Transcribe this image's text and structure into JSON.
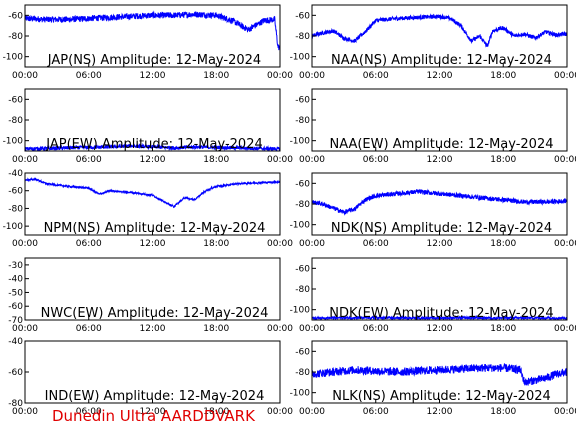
{
  "footer": "Dunedin Ultra AARDDVARK",
  "colors": {
    "trace": "#0000ff",
    "axis": "#000000",
    "footer": "#e00000"
  },
  "chart_data": [
    {
      "type": "line",
      "title": "JAP(NS) Amplitude: 12-May-2024",
      "xticks": [
        "00:00",
        "06:00",
        "12:00",
        "18:00",
        "00:00"
      ],
      "xlim": [
        0,
        24
      ],
      "yticks": [
        -60,
        -80,
        -100
      ],
      "ylim": [
        -110,
        -50
      ],
      "noise": 3,
      "series": [
        {
          "x": [
            0,
            2,
            4,
            6,
            8,
            10,
            12,
            14,
            16,
            18,
            19.5,
            21,
            22.5,
            23.5,
            23.8,
            24
          ],
          "y": [
            -63,
            -64,
            -64,
            -63,
            -62,
            -61,
            -60,
            -60,
            -59,
            -60,
            -65,
            -74,
            -65,
            -64,
            -90,
            -92
          ]
        }
      ]
    },
    {
      "type": "line",
      "title": "NAA(NS) Amplitude: 12-May-2024",
      "xticks": [
        "00:00",
        "06:00",
        "12:00",
        "18:00",
        "00:00"
      ],
      "xlim": [
        0,
        24
      ],
      "yticks": [
        -60,
        -80,
        -100
      ],
      "ylim": [
        -110,
        -50
      ],
      "noise": 2,
      "series": [
        {
          "x": [
            0,
            1,
            2,
            3,
            4,
            5,
            6,
            8,
            10,
            12,
            13,
            14,
            15,
            15.8,
            16.5,
            17,
            18,
            19,
            20,
            21,
            22,
            23,
            24
          ],
          "y": [
            -80,
            -77,
            -75,
            -82,
            -85,
            -76,
            -65,
            -63,
            -62,
            -61,
            -63,
            -70,
            -85,
            -80,
            -90,
            -75,
            -72,
            -80,
            -78,
            -82,
            -76,
            -79,
            -78
          ]
        }
      ]
    },
    {
      "type": "line",
      "title": "JAP(EW) Amplitude: 12-May-2024",
      "xticks": [
        "00:00",
        "06:00",
        "12:00",
        "18:00",
        "00:00"
      ],
      "xlim": [
        0,
        24
      ],
      "yticks": [
        -60,
        -80,
        -100
      ],
      "ylim": [
        -110,
        -50
      ],
      "noise": 1.8,
      "series": [
        {
          "x": [
            0,
            4,
            8,
            10,
            12,
            14,
            16,
            20,
            24
          ],
          "y": [
            -108,
            -107,
            -106,
            -105,
            -106,
            -107,
            -106,
            -107,
            -108
          ]
        }
      ]
    },
    {
      "type": "line",
      "title": "NAA(EW) Amplitude: 12-May-2024",
      "xticks": [
        "00:00",
        "06:00",
        "12:00",
        "18:00",
        "00:00"
      ],
      "xlim": [
        0,
        24
      ],
      "yticks": [
        -60,
        -80,
        -100
      ],
      "ylim": [
        -110,
        -50
      ],
      "noise": 0,
      "series": [
        {
          "x": [],
          "y": []
        }
      ]
    },
    {
      "type": "line",
      "title": "NPM(NS) Amplitude: 12-May-2024",
      "xticks": [
        "00:00",
        "06:00",
        "12:00",
        "18:00",
        "00:00"
      ],
      "xlim": [
        0,
        24
      ],
      "yticks": [
        -40,
        -60,
        -80,
        -100
      ],
      "ylim": [
        -110,
        -40
      ],
      "noise": 1,
      "series": [
        {
          "x": [
            0,
            1,
            2,
            4,
            6,
            7,
            8,
            10,
            12,
            13,
            14,
            15,
            16,
            17,
            18,
            19,
            20,
            22,
            24
          ],
          "y": [
            -48,
            -47,
            -52,
            -55,
            -57,
            -64,
            -60,
            -62,
            -65,
            -72,
            -78,
            -68,
            -70,
            -60,
            -55,
            -54,
            -52,
            -51,
            -50
          ]
        }
      ]
    },
    {
      "type": "line",
      "title": "NDK(NS) Amplitude: 12-May-2024",
      "xticks": [
        "00:00",
        "06:00",
        "12:00",
        "18:00",
        "00:00"
      ],
      "xlim": [
        0,
        24
      ],
      "yticks": [
        -60,
        -80,
        -100
      ],
      "ylim": [
        -110,
        -50
      ],
      "noise": 2.2,
      "series": [
        {
          "x": [
            0,
            1,
            2,
            3,
            4,
            5,
            6,
            8,
            10,
            12,
            14,
            16,
            18,
            20,
            22,
            24
          ],
          "y": [
            -78,
            -80,
            -84,
            -88,
            -85,
            -76,
            -72,
            -70,
            -68,
            -70,
            -72,
            -74,
            -76,
            -78,
            -78,
            -77
          ]
        }
      ]
    },
    {
      "type": "line",
      "title": "NWC(EW) Amplitude: 12-May-2024",
      "xticks": [
        "00:00",
        "06:00",
        "12:00",
        "18:00",
        "00:00"
      ],
      "xlim": [
        0,
        24
      ],
      "yticks": [
        -30,
        -40,
        -50,
        -60,
        -70
      ],
      "ylim": [
        -70,
        -25
      ],
      "noise": 0,
      "series": [
        {
          "x": [],
          "y": []
        }
      ]
    },
    {
      "type": "line",
      "title": "NDK(EW) Amplitude: 12-May-2024",
      "xticks": [
        "00:00",
        "06:00",
        "12:00",
        "18:00",
        "00:00"
      ],
      "xlim": [
        0,
        24
      ],
      "yticks": [
        -60,
        -80,
        -100
      ],
      "ylim": [
        -110,
        -50
      ],
      "noise": 1.2,
      "series": [
        {
          "x": [
            0,
            6,
            12,
            18,
            24
          ],
          "y": [
            -108,
            -108,
            -108,
            -108,
            -108
          ]
        }
      ]
    },
    {
      "type": "line",
      "title": "IND(EW) Amplitude: 12-May-2024",
      "xticks": [
        "00:00",
        "06:00",
        "12:00",
        "18:00",
        "00:00"
      ],
      "xlim": [
        0,
        24
      ],
      "yticks": [
        -40,
        -60,
        -80
      ],
      "ylim": [
        -80,
        -40
      ],
      "noise": 0,
      "series": [
        {
          "x": [],
          "y": []
        }
      ]
    },
    {
      "type": "line",
      "title": "NLK(NS) Amplitude: 12-May-2024",
      "xticks": [
        "00:00",
        "06:00",
        "12:00",
        "18:00",
        "00:00"
      ],
      "xlim": [
        0,
        24
      ],
      "yticks": [
        -60,
        -80,
        -100
      ],
      "ylim": [
        -110,
        -50
      ],
      "noise": 4,
      "series": [
        {
          "x": [
            0,
            2,
            4,
            6,
            8,
            10,
            12,
            14,
            16,
            18,
            19.6,
            20,
            21,
            22,
            23,
            24
          ],
          "y": [
            -82,
            -80,
            -78,
            -79,
            -80,
            -79,
            -78,
            -77,
            -76,
            -76,
            -78,
            -90,
            -88,
            -86,
            -82,
            -80
          ]
        }
      ]
    }
  ]
}
